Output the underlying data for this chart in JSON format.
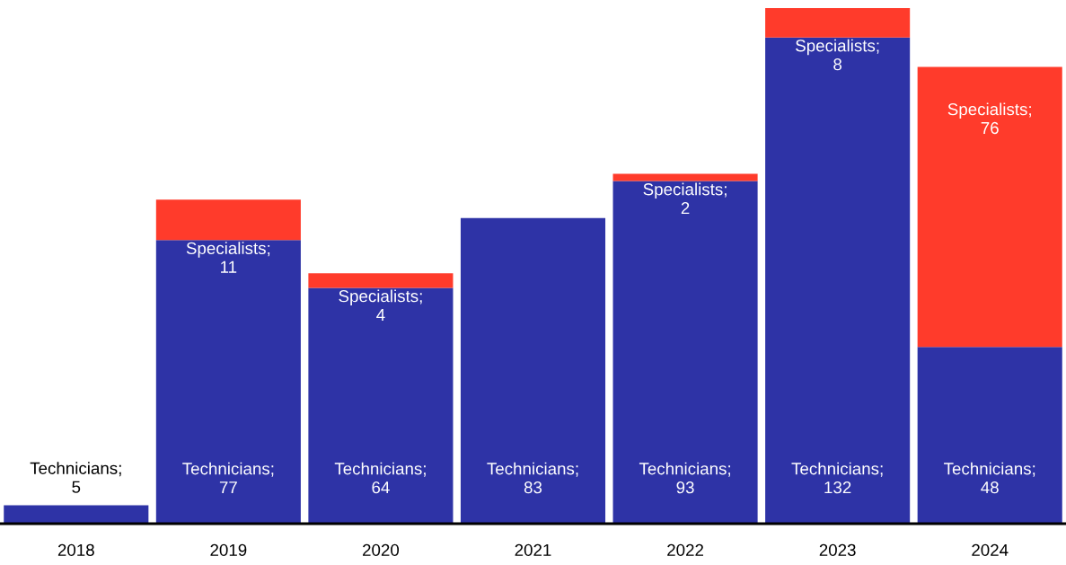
{
  "chart_data": {
    "type": "bar",
    "stacked": true,
    "categories": [
      "2018",
      "2019",
      "2020",
      "2021",
      "2022",
      "2023",
      "2024"
    ],
    "series": [
      {
        "color": "#2e33a6",
        "values": [
          5,
          77,
          64,
          83,
          93,
          132,
          48
        ],
        "value_labels": [
          "Technicians;\n5",
          "Technicians;\n77",
          "Technicians;\n64",
          "Technicians;\n83",
          "Technicians;\n93",
          "Technicians;\n132",
          "Technicians;\n48"
        ]
      },
      {
        "color": "#ff3b2b",
        "values": [
          0,
          11,
          4,
          0,
          2,
          8,
          76
        ],
        "value_labels": [
          null,
          "Specialists;\n11",
          "Specialists;\n4",
          null,
          "Specialists;\n2",
          "Specialists;\n8",
          "Specialists;\n76"
        ]
      }
    ],
    "grid": false,
    "legend": false,
    "tick_labels": "x"
  }
}
